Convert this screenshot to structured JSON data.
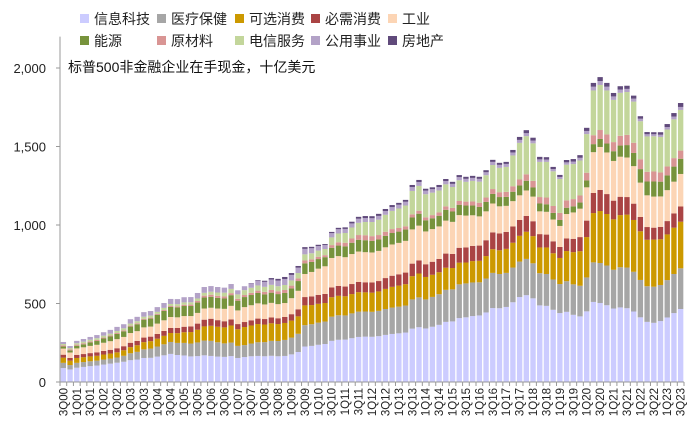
{
  "chart_data": {
    "type": "bar",
    "stacked": true,
    "title": "",
    "annotation": "标普500非金融企业在手现金，十亿美元",
    "xlabel": "",
    "ylabel": "",
    "ylim": [
      0,
      2200
    ],
    "yticks": [
      0,
      500,
      1000,
      1500,
      2000
    ],
    "ytick_labels": [
      "0",
      "500",
      "1,000",
      "1,500",
      "2,000"
    ],
    "grid": false,
    "legend_position": "top",
    "categories": [
      "3Q00",
      "4Q00",
      "1Q01",
      "2Q01",
      "3Q01",
      "4Q01",
      "1Q02",
      "2Q02",
      "3Q02",
      "4Q02",
      "1Q03",
      "2Q03",
      "3Q03",
      "4Q03",
      "1Q04",
      "2Q04",
      "3Q04",
      "4Q04",
      "1Q05",
      "2Q05",
      "3Q05",
      "4Q05",
      "1Q06",
      "2Q06",
      "3Q06",
      "4Q06",
      "1Q07",
      "2Q07",
      "3Q07",
      "4Q07",
      "1Q08",
      "2Q08",
      "3Q08",
      "4Q08",
      "1Q09",
      "2Q09",
      "3Q09",
      "4Q09",
      "1Q10",
      "2Q10",
      "3Q10",
      "4Q10",
      "1Q11",
      "2Q11",
      "3Q11",
      "4Q11",
      "1Q12",
      "2Q12",
      "3Q12",
      "4Q12",
      "1Q13",
      "2Q13",
      "3Q13",
      "4Q13",
      "1Q14",
      "2Q14",
      "3Q14",
      "4Q14",
      "1Q15",
      "2Q15",
      "3Q15",
      "4Q15",
      "1Q16",
      "2Q16",
      "3Q16",
      "4Q16",
      "1Q17",
      "2Q17",
      "3Q17",
      "4Q17",
      "1Q18",
      "2Q18",
      "3Q18",
      "4Q18",
      "1Q19",
      "2Q19",
      "3Q19",
      "4Q19",
      "1Q20",
      "2Q20",
      "3Q20",
      "4Q20",
      "1Q21",
      "2Q21",
      "3Q21",
      "4Q21",
      "1Q22",
      "2Q22",
      "3Q22",
      "4Q22",
      "1Q23",
      "2Q23",
      "3Q23"
    ],
    "x_tick_labels_every": 2,
    "series": [
      {
        "name": "信息科技",
        "color": "#ccccff",
        "values": [
          89,
          80,
          91,
          96,
          101,
          105,
          111,
          117,
          123,
          129,
          139,
          143,
          153,
          154,
          162,
          170,
          179,
          172,
          169,
          163,
          165,
          170,
          166,
          162,
          160,
          165,
          153,
          159,
          164,
          166,
          164,
          167,
          164,
          166,
          176,
          191,
          226,
          230,
          237,
          242,
          262,
          269,
          270,
          279,
          287,
          289,
          288,
          292,
          300,
          306,
          310,
          315,
          340,
          349,
          341,
          352,
          364,
          383,
          386,
          407,
          412,
          420,
          424,
          443,
          471,
          470,
          478,
          508,
          541,
          553,
          533,
          488,
          485,
          460,
          439,
          447,
          428,
          418,
          450,
          510,
          503,
          489,
          468,
          475,
          470,
          449,
          412,
          383,
          377,
          388,
          411,
          439,
          465
        ]
      },
      {
        "name": "医疗保健",
        "color": "#a6a6a6",
        "values": [
          33,
          28,
          31,
          31,
          31,
          31,
          32,
          32,
          33,
          38,
          44,
          49,
          55,
          59,
          64,
          70,
          76,
          77,
          80,
          82,
          87,
          94,
          96,
          91,
          86,
          86,
          77,
          76,
          81,
          87,
          90,
          95,
          97,
          102,
          107,
          116,
          136,
          138,
          141,
          143,
          154,
          156,
          154,
          158,
          161,
          160,
          159,
          161,
          165,
          168,
          170,
          172,
          186,
          190,
          185,
          190,
          195,
          204,
          204,
          215,
          216,
          214,
          211,
          216,
          224,
          218,
          217,
          221,
          226,
          231,
          223,
          205,
          203,
          193,
          185,
          195,
          194,
          195,
          216,
          252,
          255,
          253,
          247,
          256,
          259,
          253,
          238,
          227,
          230,
          230,
          238,
          249,
          259
        ]
      },
      {
        "name": "可选消费",
        "color": "#cc9900",
        "values": [
          33,
          28,
          31,
          31,
          31,
          31,
          32,
          32,
          33,
          35,
          39,
          42,
          46,
          47,
          50,
          54,
          57,
          62,
          68,
          73,
          81,
          90,
          96,
          99,
          102,
          109,
          106,
          115,
          115,
          116,
          112,
          112,
          108,
          108,
          108,
          111,
          126,
          122,
          120,
          118,
          124,
          124,
          122,
          123,
          124,
          122,
          122,
          124,
          128,
          132,
          134,
          136,
          148,
          152,
          143,
          141,
          140,
          141,
          136,
          138,
          133,
          136,
          137,
          143,
          151,
          151,
          153,
          158,
          164,
          173,
          173,
          164,
          169,
          167,
          166,
          192,
          205,
          220,
          257,
          314,
          331,
          328,
          321,
          332,
          337,
          330,
          310,
          296,
          300,
          291,
          291,
          295,
          297
        ]
      },
      {
        "name": "必需消费",
        "color": "#aa4444",
        "values": [
          19,
          17,
          20,
          20,
          21,
          22,
          23,
          24,
          26,
          26,
          28,
          28,
          29,
          29,
          30,
          31,
          32,
          33,
          35,
          36,
          39,
          43,
          45,
          42,
          39,
          38,
          33,
          32,
          33,
          35,
          35,
          37,
          37,
          38,
          41,
          45,
          53,
          55,
          57,
          58,
          62,
          63,
          62,
          64,
          65,
          64,
          65,
          66,
          69,
          71,
          72,
          74,
          80,
          83,
          81,
          83,
          85,
          90,
          90,
          95,
          96,
          97,
          97,
          101,
          107,
          107,
          108,
          104,
          101,
          101,
          95,
          85,
          82,
          76,
          70,
          80,
          85,
          90,
          105,
          128,
          134,
          127,
          119,
          117,
          112,
          104,
          91,
          81,
          76,
          79,
          85,
          91,
          97
        ]
      },
      {
        "name": "工业",
        "color": "#fcd5b5",
        "values": [
          39,
          35,
          41,
          43,
          46,
          48,
          52,
          55,
          58,
          59,
          62,
          62,
          65,
          64,
          66,
          68,
          70,
          68,
          68,
          66,
          68,
          71,
          70,
          74,
          79,
          87,
          87,
          95,
          96,
          97,
          93,
          93,
          90,
          89,
          102,
          118,
          147,
          156,
          167,
          176,
          188,
          190,
          187,
          191,
          194,
          192,
          191,
          192,
          196,
          199,
          200,
          202,
          218,
          222,
          209,
          208,
          207,
          210,
          204,
          208,
          203,
          195,
          186,
          184,
          184,
          173,
          166,
          161,
          157,
          162,
          157,
          145,
          145,
          139,
          134,
          156,
          168,
          181,
          212,
          260,
          274,
          265,
          253,
          255,
          252,
          239,
          219,
          202,
          198,
          194,
          197,
          202,
          207
        ]
      },
      {
        "name": "能源",
        "color": "#77933c",
        "values": [
          13,
          13,
          17,
          19,
          22,
          24,
          27,
          30,
          33,
          36,
          41,
          44,
          49,
          51,
          56,
          60,
          64,
          63,
          64,
          64,
          66,
          70,
          70,
          68,
          66,
          68,
          62,
          64,
          65,
          66,
          64,
          65,
          64,
          64,
          62,
          62,
          68,
          64,
          61,
          58,
          65,
          67,
          69,
          72,
          75,
          76,
          74,
          73,
          73,
          73,
          72,
          72,
          76,
          76,
          71,
          69,
          68,
          69,
          66,
          66,
          64,
          62,
          60,
          60,
          61,
          59,
          57,
          60,
          63,
          62,
          58,
          50,
          48,
          42,
          38,
          40,
          39,
          39,
          44,
          51,
          51,
          57,
          62,
          71,
          79,
          84,
          86,
          88,
          96,
          94,
          94,
          96,
          97
        ]
      },
      {
        "name": "原材料",
        "color": "#d99594",
        "values": [
          8,
          7,
          7,
          7,
          7,
          7,
          6,
          6,
          6,
          6,
          6,
          6,
          6,
          6,
          6,
          6,
          6,
          7,
          8,
          9,
          10,
          12,
          13,
          13,
          13,
          13,
          12,
          13,
          14,
          15,
          16,
          17,
          18,
          19,
          18,
          17,
          18,
          16,
          15,
          13,
          17,
          21,
          23,
          27,
          30,
          32,
          30,
          28,
          26,
          25,
          23,
          21,
          20,
          19,
          19,
          20,
          21,
          22,
          23,
          24,
          25,
          26,
          27,
          28,
          31,
          31,
          32,
          35,
          38,
          41,
          42,
          41,
          43,
          44,
          45,
          47,
          46,
          45,
          49,
          57,
          57,
          58,
          58,
          62,
          65,
          65,
          63,
          62,
          64,
          59,
          57,
          54,
          52
        ]
      },
      {
        "name": "电信服务",
        "color": "#c3d69b",
        "values": [
          8,
          8,
          9,
          10,
          10,
          11,
          12,
          12,
          13,
          13,
          13,
          13,
          13,
          13,
          13,
          13,
          13,
          14,
          15,
          15,
          16,
          18,
          19,
          21,
          24,
          27,
          28,
          31,
          32,
          33,
          32,
          33,
          32,
          32,
          33,
          34,
          39,
          39,
          39,
          39,
          49,
          56,
          62,
          70,
          78,
          84,
          90,
          98,
          108,
          116,
          124,
          132,
          149,
          158,
          147,
          143,
          140,
          140,
          133,
          132,
          126,
          131,
          134,
          142,
          153,
          155,
          159,
          196,
          233,
          243,
          239,
          224,
          227,
          221,
          216,
          227,
          223,
          223,
          246,
          285,
          287,
          280,
          269,
          274,
          273,
          262,
          242,
          225,
          224,
          226,
          235,
          247,
          259
        ]
      },
      {
        "name": "公用事业",
        "color": "#b3a2c7",
        "values": [
          13,
          13,
          15,
          17,
          18,
          20,
          22,
          24,
          26,
          26,
          28,
          28,
          29,
          29,
          30,
          31,
          32,
          32,
          33,
          33,
          35,
          37,
          36,
          35,
          32,
          31,
          26,
          25,
          28,
          30,
          32,
          34,
          36,
          38,
          35,
          34,
          35,
          32,
          29,
          26,
          27,
          27,
          26,
          26,
          26,
          25,
          24,
          24,
          24,
          24,
          24,
          24,
          25,
          25,
          23,
          22,
          22,
          21,
          20,
          20,
          19,
          19,
          18,
          19,
          20,
          19,
          19,
          19,
          19,
          19,
          18,
          16,
          15,
          14,
          13,
          15,
          16,
          17,
          20,
          24,
          25,
          24,
          22,
          21,
          20,
          19,
          16,
          14,
          13,
          14,
          16,
          18,
          19
        ]
      },
      {
        "name": "房地产",
        "color": "#604a7b",
        "values": [
          0,
          0,
          0,
          0,
          0,
          0,
          0,
          0,
          0,
          0,
          0,
          0,
          0,
          0,
          0,
          0,
          0,
          0,
          0,
          0,
          0,
          0,
          0,
          0,
          0,
          0,
          0,
          0,
          2,
          4,
          7,
          9,
          11,
          13,
          12,
          11,
          11,
          9,
          8,
          6,
          8,
          9,
          10,
          11,
          12,
          13,
          13,
          13,
          13,
          13,
          12,
          12,
          13,
          13,
          12,
          12,
          13,
          13,
          13,
          13,
          13,
          13,
          13,
          13,
          13,
          13,
          13,
          16,
          19,
          19,
          18,
          16,
          15,
          14,
          13,
          15,
          16,
          17,
          20,
          24,
          25,
          24,
          22,
          21,
          20,
          19,
          16,
          14,
          13,
          16,
          19,
          22,
          25
        ]
      }
    ]
  }
}
